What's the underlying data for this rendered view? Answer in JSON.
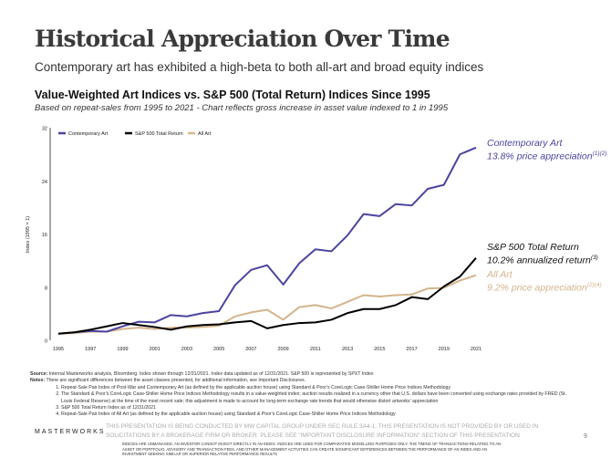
{
  "slide": {
    "title": "Historical Appreciation Over Time",
    "subtitle": "Contemporary art has exhibited a high-beta to both all-art and broad equity indices",
    "page_number": "9",
    "logo": "MASTERWORKS"
  },
  "chart_data": {
    "type": "line",
    "title": "Value-Weighted Art Indices vs. S&P 500 (Total Return) Indices Since 1995",
    "subtitle": "Based on repeat-sales from 1995 to 2021 - Chart reflects gross increase in asset value indexed to 1 in 1995",
    "xlabel": "",
    "ylabel": "Index (1995 = 1)",
    "ylim": [
      0,
      32
    ],
    "yticks": [
      "0",
      "8",
      "16",
      "24",
      "32"
    ],
    "xlim": [
      1995,
      2021
    ],
    "xticks": [
      "1995",
      "1997",
      "1999",
      "2001",
      "2003",
      "2005",
      "2007",
      "2009",
      "2011",
      "2013",
      "2015",
      "2017",
      "2019",
      "2021"
    ],
    "grid": false,
    "legend_position": "top-left",
    "x": [
      1995,
      1996,
      1997,
      1998,
      1999,
      2000,
      2001,
      2002,
      2003,
      2004,
      2005,
      2006,
      2007,
      2008,
      2009,
      2010,
      2011,
      2012,
      2013,
      2014,
      2015,
      2016,
      2017,
      2018,
      2019,
      2020,
      2021
    ],
    "series": [
      {
        "name": "Contemporary Art",
        "color": "#4b44a0",
        "values": [
          1,
          1.2,
          1.4,
          1.3,
          2.1,
          2.8,
          2.7,
          3.8,
          3.6,
          4.1,
          4.4,
          8.3,
          10.6,
          11.3,
          8.4,
          11.6,
          13.7,
          13.4,
          15.8,
          19.0,
          18.7,
          20.5,
          20.3,
          22.8,
          23.4,
          28.0,
          29.0
        ]
      },
      {
        "name": "S&P 500 Total Return",
        "color": "#000000",
        "values": [
          1,
          1.2,
          1.6,
          2.1,
          2.6,
          2.3,
          2.0,
          1.6,
          2.1,
          2.3,
          2.4,
          2.7,
          2.9,
          1.8,
          2.3,
          2.6,
          2.7,
          3.1,
          4.1,
          4.7,
          4.7,
          5.3,
          6.5,
          6.2,
          8.1,
          9.6,
          12.4
        ]
      },
      {
        "name": "All Art",
        "color": "#d4b48c",
        "values": [
          1,
          1.1,
          1.3,
          1.3,
          1.7,
          1.9,
          1.7,
          1.9,
          1.9,
          2.0,
          2.2,
          3.6,
          4.2,
          4.6,
          3.1,
          5.0,
          5.3,
          4.8,
          5.8,
          6.8,
          6.6,
          6.8,
          6.9,
          7.8,
          7.9,
          9.0,
          9.8
        ]
      }
    ],
    "annotations": [
      {
        "name": "Contemporary Art",
        "text": "13.8% price appreciation",
        "sup": "(1)(2)",
        "color": "#4b44a0"
      },
      {
        "name": "S&P 500 Total Return",
        "text": "10.2% annualized return",
        "sup": "(3)",
        "color": "#111111"
      },
      {
        "name": "All Art",
        "text": "9.2% price appreciation",
        "sup": "(2)(4)",
        "color": "#d4b48c"
      }
    ]
  },
  "notes": {
    "source_label": "Source:",
    "source": "Internal Masterworks analysis, Bloomberg. Index shown through 12/31/2021. Index data updated as of 12/31/2021. S&P 500 is represented by SPXT Index",
    "notes_label": "Notes:",
    "notes_intro": "There are significant differences between the asset classes presented, for additional information, see Important Disclosures.",
    "items": [
      "Repeat-Sale Pair Index of Post-War and Contemporary Art (as defined by the applicable auction house) using Standard & Poor's CoreLogic Case-Shiller Home Price Indices Methodology",
      "The Standard & Poor's CoreLogic Case-Shiller Home Price Indices Methodology results in a value-weighted index; auction results realized in a currency other that U.S. dollars have been converted using exchange rates provided by FRED (St. Louis Federal Reserve) at the time of the most recent sale; this adjustment is made to account for long-term exchange rate trends that would otherwise distort artworks' appreciation",
      "S&P 500 Total Return Index as of 12/31/2021",
      "Repeat-Sale Pair Index of All Art (as defined by the applicable auction house) using Standard & Poor's CoreLogic Case-Shiller Home Price Indices Methodology"
    ]
  },
  "disclaimer": "THIS PRESENTATION IS BEING CONDUCTED BY MW CAPITAL GROUP UNDER SEC RULE 3A4-1. THIS PRESENTATION IS NOT PROVIDED BY OR USED IN SOLICITATIONS BY A BROKERAGE FIRM OR BROKER. PLEASE SEE \"IMPORTANT DISCLOSURE INFORMATION\" SECTION OF THIS PRESENTATION",
  "fine_print": "INDICES ARE UNMANAGED. AN INVESTOR CANNOT INVEST DIRECTLY IN AN INDEX. INDICES ARE USED FOR COMPARATIVE MODELLING PURPOSES ONLY. THE TIMING OF TRANSACTIONS RELATING TO AN ASSET OR PORTFOLIO, ADVISORY AND TRANSACTION FEES, AND OTHER MANAGEMENT ACTIVITIES CAN CREATE SIGNIFICANT DIFFERENCES BETWEEN THE PERFORMANCE OF AN INDEX AND AN INVESTMENT SEEKING SIMILAR OR SUPERIOR RELATIVE PERFORMANCE RESULTS"
}
